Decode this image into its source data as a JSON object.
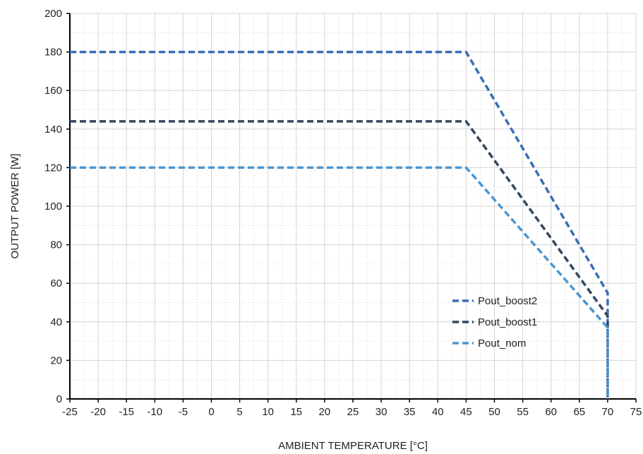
{
  "chart_data": {
    "type": "line",
    "title": "",
    "xlabel": "AMBIENT TEMPERATURE [°C]",
    "ylabel": "OUTPUT POWER [W]",
    "xlim": [
      -25,
      75
    ],
    "ylim": [
      0,
      200
    ],
    "xticks": [
      -25,
      -20,
      -15,
      -10,
      -5,
      0,
      5,
      10,
      15,
      20,
      25,
      30,
      35,
      40,
      45,
      50,
      55,
      60,
      65,
      70,
      75
    ],
    "yticks": [
      0,
      20,
      40,
      60,
      80,
      100,
      120,
      140,
      160,
      180,
      200
    ],
    "grid": true,
    "legend_position": "bottom-right",
    "series": [
      {
        "name": "Pout_boost2",
        "color": "#3a6db5",
        "dash": "dashed",
        "points": [
          [
            -25,
            180
          ],
          [
            45,
            180
          ],
          [
            70,
            55
          ],
          [
            70,
            0
          ]
        ]
      },
      {
        "name": "Pout_boost1",
        "color": "#34475e",
        "dash": "dashed",
        "points": [
          [
            -25,
            144
          ],
          [
            45,
            144
          ],
          [
            70,
            43
          ],
          [
            70,
            0
          ]
        ]
      },
      {
        "name": "Pout_nom",
        "color": "#4a96d2",
        "dash": "dashed",
        "points": [
          [
            -25,
            120
          ],
          [
            45,
            120
          ],
          [
            70,
            37
          ],
          [
            70,
            0
          ]
        ]
      }
    ]
  }
}
